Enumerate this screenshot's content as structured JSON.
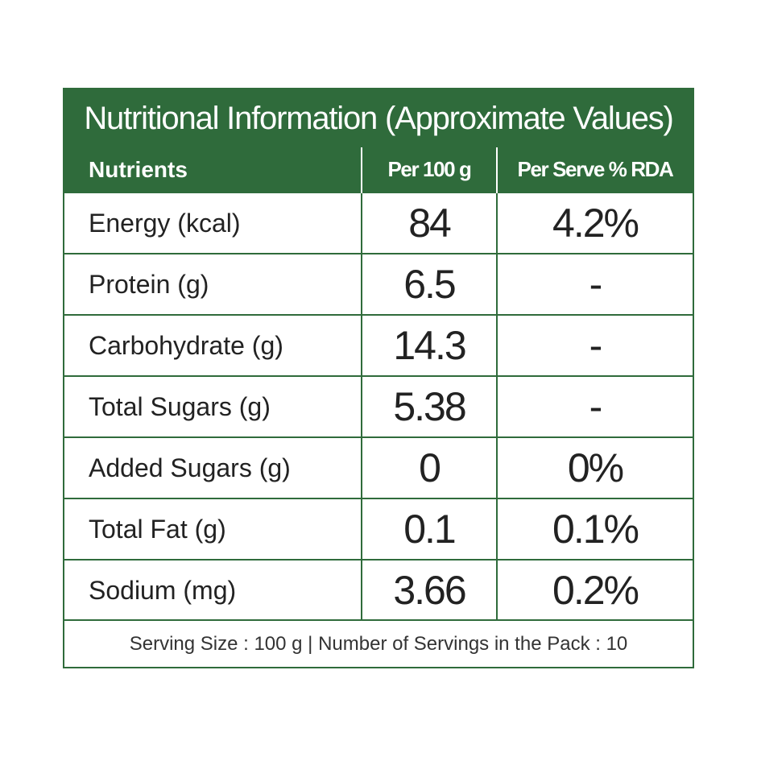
{
  "title": "Nutritional Information (Approximate Values)",
  "columns": {
    "nutrients": "Nutrients",
    "per_100g": "Per 100 g",
    "per_serve_rda": "Per Serve % RDA"
  },
  "rows": [
    {
      "nutrient": "Energy (kcal)",
      "per_100g": "84",
      "rda": "4.2%"
    },
    {
      "nutrient": "Protein (g)",
      "per_100g": "6.5",
      "rda": "-"
    },
    {
      "nutrient": "Carbohydrate (g)",
      "per_100g": "14.3",
      "rda": "-"
    },
    {
      "nutrient": "Total Sugars (g)",
      "per_100g": "5.38",
      "rda": "-"
    },
    {
      "nutrient": "Added Sugars (g)",
      "per_100g": "0",
      "rda": "0%"
    },
    {
      "nutrient": "Total Fat (g)",
      "per_100g": "0.1",
      "rda": "0.1%"
    },
    {
      "nutrient": "Sodium (mg)",
      "per_100g": "3.66",
      "rda": "0.2%"
    }
  ],
  "footer": "Serving Size : 100 g | Number of Servings in the Pack : 10",
  "colors": {
    "accent": "#2f6b3b",
    "background": "#ffffff",
    "text": "#222222"
  }
}
